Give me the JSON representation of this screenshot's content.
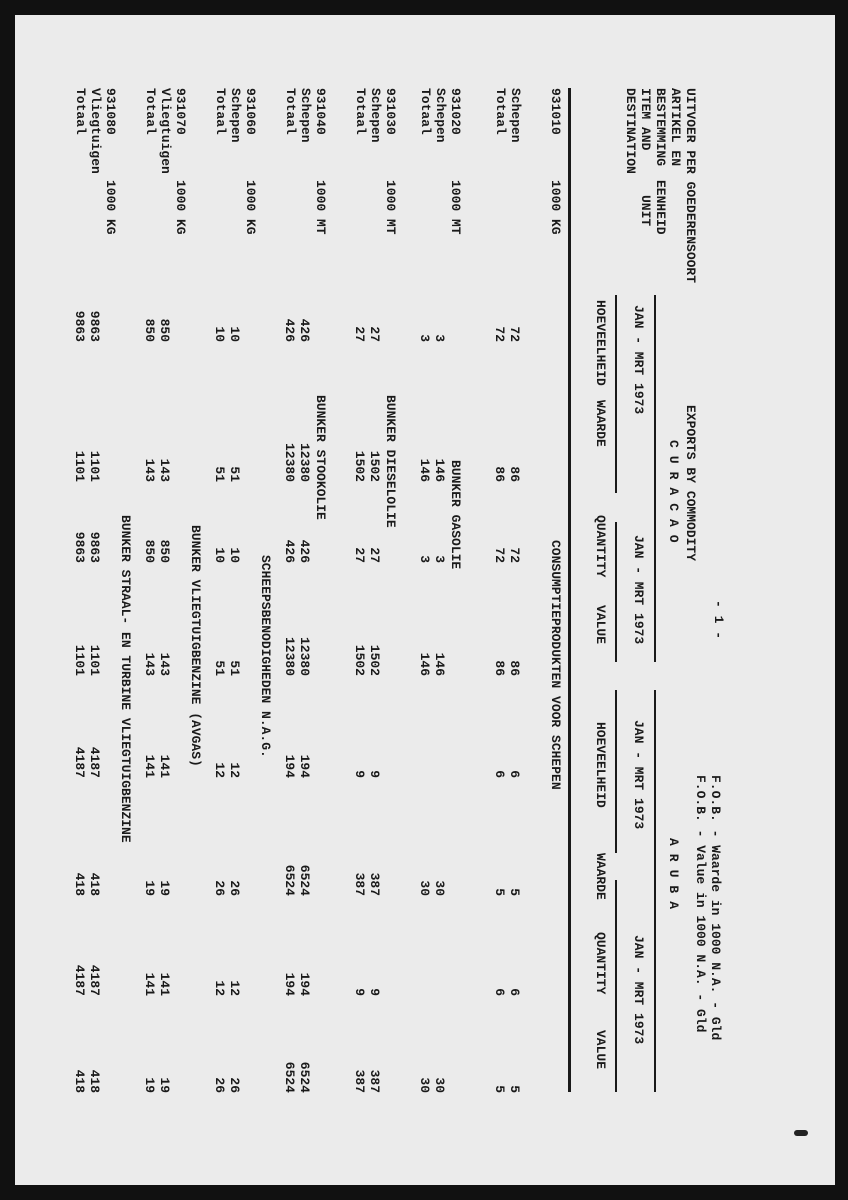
{
  "header": {
    "fob_nl": "F.O.B. - Waarde in 1000 N.A. - Gld",
    "fob_en": "F.O.B. - Value in 1000 N.A. - Gld",
    "page_number": "- 1 -",
    "title": "EXPORTS BY COMMODITY",
    "subtitle_nl": "UITVOER PER GOEDERENSOORT",
    "col_item_nl_1": "ARTIKEL EN",
    "col_item_nl_2": "BESTEMMING",
    "col_unit_nl": "EENHEID",
    "col_item_en_1": "ITEM AND",
    "col_item_en_2": "DESTINATION",
    "col_unit_en": "UNIT",
    "region_1": "CURACAO",
    "region_2": "ARUBA",
    "periods": [
      "JAN - MRT 1973",
      "JAN - MRT 1973",
      "JAN - MRT 1973",
      "JAN - MRT 1973"
    ],
    "columns": [
      "HOEVEELHEID",
      "WAARDE",
      "QUANTITY",
      "VALUE",
      "HOEVEELHEID",
      "WAARDE",
      "QUANTITY",
      "VALUE"
    ]
  },
  "sections": [
    {
      "code": "931010",
      "unit": "1000 KG",
      "label": "CONSUMPTIEPRODUKTEN VOOR SCHEPEN",
      "rows": [
        {
          "name": "Schepen",
          "values": [
            "72",
            "86",
            "72",
            "86",
            "6",
            "5",
            "6",
            "5"
          ]
        },
        {
          "name": "Totaal",
          "values": [
            "72",
            "86",
            "72",
            "86",
            "6",
            "5",
            "6",
            "5"
          ]
        }
      ]
    },
    {
      "code": "931020",
      "unit": "1000 MT",
      "label": "BUNKER GASOLIE",
      "rows": [
        {
          "name": "Schepen",
          "values": [
            "3",
            "146",
            "3",
            "146",
            "",
            "30",
            "",
            "30"
          ]
        },
        {
          "name": "Totaal",
          "values": [
            "3",
            "146",
            "3",
            "146",
            "",
            "30",
            "",
            "30"
          ]
        }
      ]
    },
    {
      "code": "931030",
      "unit": "1000 MT",
      "label": "BUNKER DIESELOLIE",
      "rows": [
        {
          "name": "Schepen",
          "values": [
            "27",
            "1502",
            "27",
            "1502",
            "9",
            "387",
            "9",
            "387"
          ]
        },
        {
          "name": "Totaal",
          "values": [
            "27",
            "1502",
            "27",
            "1502",
            "9",
            "387",
            "9",
            "387"
          ]
        }
      ]
    },
    {
      "code": "931040",
      "unit": "1000 MT",
      "label": "BUNKER STOOKOLIE",
      "rows": [
        {
          "name": "Schepen",
          "values": [
            "426",
            "12380",
            "426",
            "12380",
            "194",
            "6524",
            "194",
            "6524"
          ]
        },
        {
          "name": "Totaal",
          "values": [
            "426",
            "12380",
            "426",
            "12380",
            "194",
            "6524",
            "194",
            "6524"
          ]
        }
      ]
    },
    {
      "code": "931060",
      "unit": "1000 KG",
      "label": "SCHEEPSBENODIGHEDEN N.A.G.",
      "rows": [
        {
          "name": "Schepen",
          "values": [
            "10",
            "51",
            "10",
            "51",
            "12",
            "26",
            "12",
            "26"
          ]
        },
        {
          "name": "Totaal",
          "values": [
            "10",
            "51",
            "10",
            "51",
            "12",
            "26",
            "12",
            "26"
          ]
        }
      ]
    },
    {
      "code": "931070",
      "unit": "1000 KG",
      "label": "BUNKER VLIEGTUIGBENZINE (AVGAS)",
      "rows": [
        {
          "name": "Vliegtuigen",
          "values": [
            "850",
            "143",
            "850",
            "143",
            "141",
            "19",
            "141",
            "19"
          ]
        },
        {
          "name": "Totaal",
          "values": [
            "850",
            "143",
            "850",
            "143",
            "141",
            "19",
            "141",
            "19"
          ]
        }
      ]
    },
    {
      "code": "931080",
      "unit": "1000 KG",
      "label": "BUNKER STRAAL- EN TURBINE VLIEGTUIGBENZINE",
      "rows": [
        {
          "name": "Vliegtuigen",
          "values": [
            "9863",
            "1101",
            "9863",
            "1101",
            "4187",
            "418",
            "4187",
            "418"
          ]
        },
        {
          "name": "Totaal",
          "values": [
            "9863",
            "1101",
            "9863",
            "1101",
            "4187",
            "418",
            "4187",
            "418"
          ]
        }
      ]
    }
  ]
}
